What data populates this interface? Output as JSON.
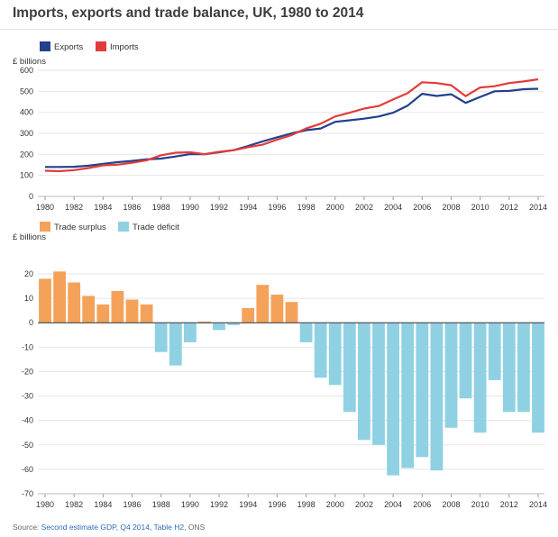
{
  "title": "Imports, exports and trade balance, UK, 1980 to 2014",
  "source": {
    "prefix": "Source: ",
    "link": "Second estimate GDP, Q4 2014, Table H2",
    "suffix": ", ONS"
  },
  "colors": {
    "exports": "#22418b",
    "imports": "#e33b3b",
    "surplus": "#f4a259",
    "deficit": "#8fd1e3"
  },
  "chart_data": [
    {
      "type": "line",
      "ylabel": "£ billions",
      "ylim": [
        0,
        600
      ],
      "yticks": [
        0,
        100,
        200,
        300,
        400,
        500,
        600
      ],
      "xlim": [
        1980,
        2014
      ],
      "xticks": [
        1980,
        1982,
        1984,
        1986,
        1988,
        1990,
        1992,
        1994,
        1996,
        1998,
        2000,
        2002,
        2004,
        2006,
        2008,
        2010,
        2012,
        2014
      ],
      "grid": true,
      "legend_position": "top-left",
      "x": [
        1980,
        1981,
        1982,
        1983,
        1984,
        1985,
        1986,
        1987,
        1988,
        1989,
        1990,
        1991,
        1992,
        1993,
        1994,
        1995,
        1996,
        1997,
        1998,
        1999,
        2000,
        2001,
        2002,
        2003,
        2004,
        2005,
        2006,
        2007,
        2008,
        2009,
        2010,
        2011,
        2012,
        2013,
        2014
      ],
      "series": [
        {
          "name": "Exports",
          "color": "#22418b",
          "values": [
            140,
            140,
            141,
            146,
            155,
            163,
            169,
            176,
            180,
            190,
            201,
            201,
            210,
            220,
            240,
            262,
            281,
            300,
            315,
            323,
            355,
            362,
            370,
            380,
            398,
            432,
            488,
            478,
            486,
            445,
            473,
            500,
            502,
            510,
            512
          ]
        },
        {
          "name": "Imports",
          "color": "#e33b3b",
          "values": [
            122,
            120,
            125,
            135,
            148,
            151,
            160,
            172,
            196,
            208,
            210,
            201,
            212,
            220,
            234,
            246,
            270,
            292,
            323,
            346,
            380,
            398,
            418,
            430,
            461,
            491,
            543,
            539,
            529,
            477,
            518,
            524,
            539,
            547,
            557
          ]
        }
      ]
    },
    {
      "type": "bar",
      "ylabel": "£ billions",
      "ylim": [
        -70,
        20
      ],
      "yticks": [
        20,
        10,
        0,
        -10,
        -20,
        -30,
        -40,
        -50,
        -60,
        -70
      ],
      "xlim": [
        1980,
        2014
      ],
      "xticks": [
        1980,
        1982,
        1984,
        1986,
        1988,
        1990,
        1992,
        1994,
        1996,
        1998,
        2000,
        2002,
        2004,
        2006,
        2008,
        2010,
        2012,
        2014
      ],
      "grid": true,
      "legend_position": "top-left",
      "legend": [
        {
          "name": "Trade surplus",
          "color": "#f4a259"
        },
        {
          "name": "Trade deficit",
          "color": "#8fd1e3"
        }
      ],
      "x": [
        1980,
        1981,
        1982,
        1983,
        1984,
        1985,
        1986,
        1987,
        1988,
        1989,
        1990,
        1991,
        1992,
        1993,
        1994,
        1995,
        1996,
        1997,
        1998,
        1999,
        2000,
        2001,
        2002,
        2003,
        2004,
        2005,
        2006,
        2007,
        2008,
        2009,
        2010,
        2011,
        2012,
        2013,
        2014
      ],
      "values": [
        18,
        21,
        16.5,
        11,
        7.5,
        13,
        9.5,
        7.5,
        -12,
        -17.5,
        -8,
        0.5,
        -3,
        -1,
        6,
        15.5,
        11.5,
        8.5,
        -8,
        -22.5,
        -25.5,
        -36.5,
        -48,
        -50,
        -62.5,
        -59.5,
        -55,
        -60.5,
        -43,
        -31,
        -45,
        -23.5,
        -36.5,
        -36.5,
        -45
      ]
    }
  ]
}
